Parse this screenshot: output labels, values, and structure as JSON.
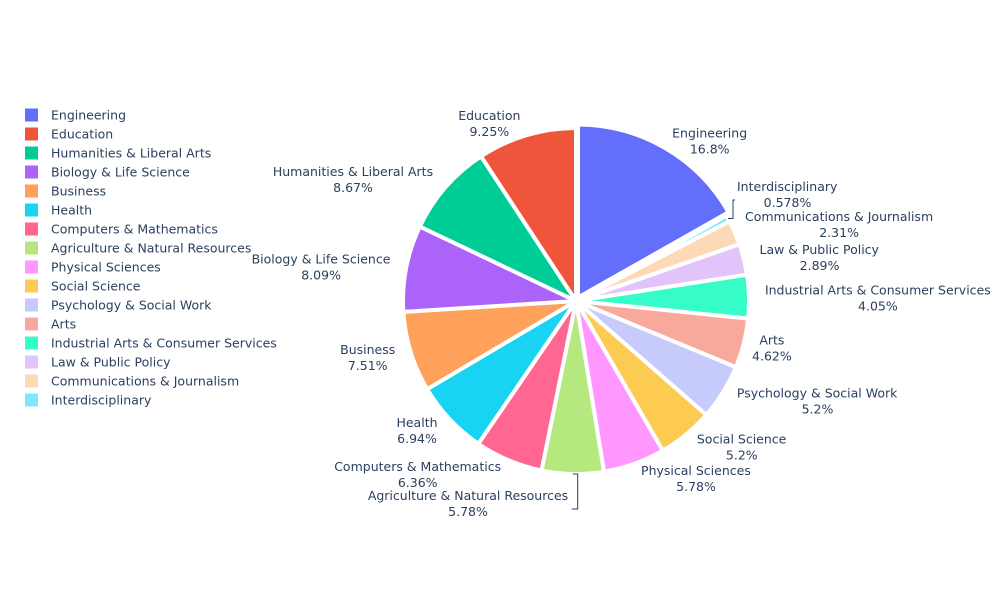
{
  "chart_data": {
    "type": "pie",
    "title": "",
    "legend_position": "left",
    "slices": [
      {
        "label": "Engineering",
        "percent_text": "16.8%",
        "value": 16.8,
        "color": "#636efa"
      },
      {
        "label": "Interdisciplinary",
        "percent_text": "0.578%",
        "value": 0.578,
        "color": "#7ee8fa"
      },
      {
        "label": "Communications & Journalism",
        "percent_text": "2.31%",
        "value": 2.31,
        "color": "#fed9b7"
      },
      {
        "label": "Law & Public Policy",
        "percent_text": "2.89%",
        "value": 2.89,
        "color": "#e2c4fb"
      },
      {
        "label": "Industrial Arts & Consumer Services",
        "percent_text": "4.05%",
        "value": 4.05,
        "color": "#36fcc8"
      },
      {
        "label": "Arts",
        "percent_text": "4.62%",
        "value": 4.62,
        "color": "#f8a99b"
      },
      {
        "label": "Psychology & Social Work",
        "percent_text": "5.2%",
        "value": 5.2,
        "color": "#c6cbfb"
      },
      {
        "label": "Social Science",
        "percent_text": "5.2%",
        "value": 5.2,
        "color": "#fecb52"
      },
      {
        "label": "Physical Sciences",
        "percent_text": "5.78%",
        "value": 5.78,
        "color": "#ff97ff"
      },
      {
        "label": "Agriculture & Natural Resources",
        "percent_text": "5.78%",
        "value": 5.78,
        "color": "#b6e880"
      },
      {
        "label": "Computers & Mathematics",
        "percent_text": "6.36%",
        "value": 6.36,
        "color": "#ff6692"
      },
      {
        "label": "Health",
        "percent_text": "6.94%",
        "value": 6.94,
        "color": "#19d3f3"
      },
      {
        "label": "Business",
        "percent_text": "7.51%",
        "value": 7.51,
        "color": "#ffa15a"
      },
      {
        "label": "Biology & Life Science",
        "percent_text": "8.09%",
        "value": 8.09,
        "color": "#ab63fa"
      },
      {
        "label": "Humanities & Liberal Arts",
        "percent_text": "8.67%",
        "value": 8.67,
        "color": "#00cc96"
      },
      {
        "label": "Education",
        "percent_text": "9.25%",
        "value": 9.25,
        "color": "#ef553b"
      }
    ],
    "legend": [
      {
        "label": "Engineering",
        "color": "#636efa"
      },
      {
        "label": "Education",
        "color": "#ef553b"
      },
      {
        "label": "Humanities & Liberal Arts",
        "color": "#00cc96"
      },
      {
        "label": "Biology & Life Science",
        "color": "#ab63fa"
      },
      {
        "label": "Business",
        "color": "#ffa15a"
      },
      {
        "label": "Health",
        "color": "#19d3f3"
      },
      {
        "label": "Computers & Mathematics",
        "color": "#ff6692"
      },
      {
        "label": "Agriculture & Natural Resources",
        "color": "#b6e880"
      },
      {
        "label": "Physical Sciences",
        "color": "#ff97ff"
      },
      {
        "label": "Social Science",
        "color": "#fecb52"
      },
      {
        "label": "Psychology & Social Work",
        "color": "#c6cbfb"
      },
      {
        "label": "Arts",
        "color": "#f8a99b"
      },
      {
        "label": "Industrial Arts & Consumer Services",
        "color": "#36fcc8"
      },
      {
        "label": "Law & Public Policy",
        "color": "#e2c4fb"
      },
      {
        "label": "Communications & Journalism",
        "color": "#fed9b7"
      },
      {
        "label": "Interdisciplinary",
        "color": "#7ee8fa"
      }
    ]
  }
}
